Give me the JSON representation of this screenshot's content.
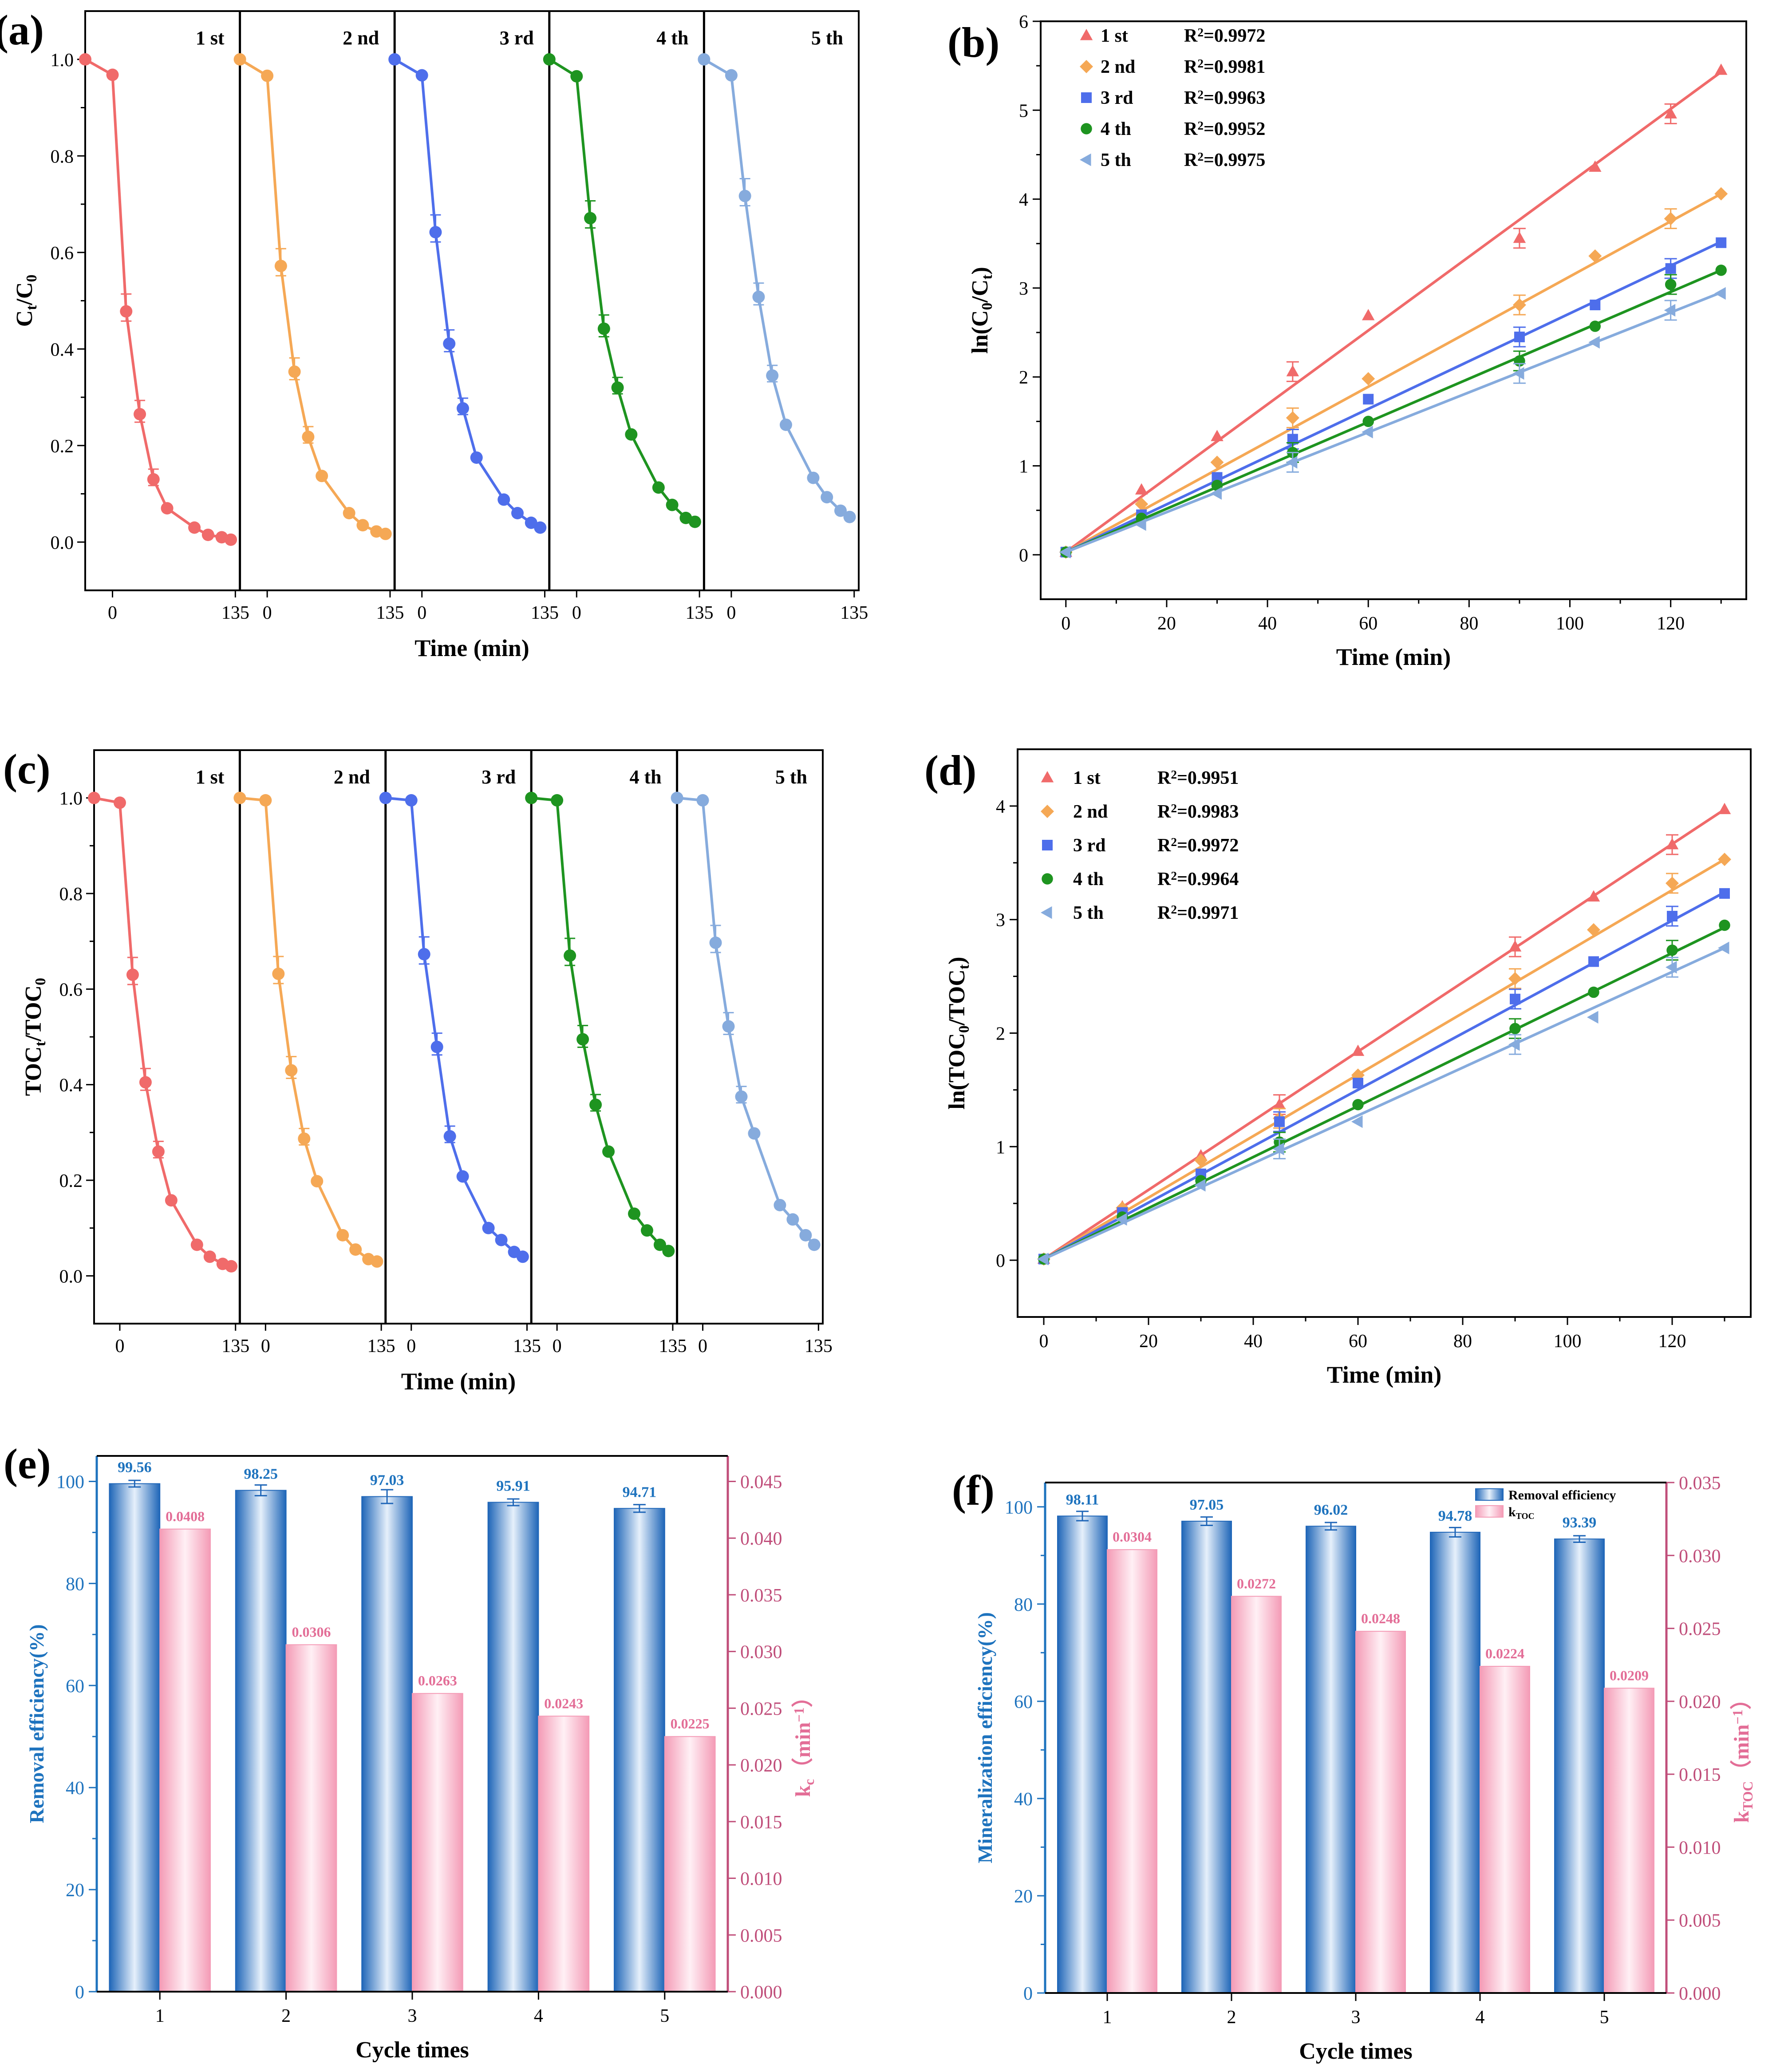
{
  "colors": {
    "cycle1": "#F06A6A",
    "cycle2": "#F5A855",
    "cycle3": "#4E6EEB",
    "cycle4": "#1E9420",
    "cycle5": "#86ABDD",
    "bar_blue": "#3C8DD9",
    "bar_pink": "#F7B8CB",
    "axis_left": "#1E73BE",
    "axis_right": "#C04E7A",
    "label_pink": "#E36E97"
  },
  "chart_data": [
    {
      "id": "a",
      "panel_label": "(a)",
      "type": "line",
      "xlabel": "Time (min)",
      "ylabel_main": "C",
      "ylabel_sub1": "t",
      "ylabel_mid": "/C",
      "ylabel_sub2": "0",
      "ylim": [
        -0.1,
        1.1
      ],
      "yticks": [
        "0.0",
        "0.2",
        "0.4",
        "0.6",
        "0.8",
        "1.0"
      ],
      "ytick_values": [
        0,
        0.2,
        0.4,
        0.6,
        0.8,
        1.0
      ],
      "sub_xlim": [
        -30,
        140
      ],
      "sub_xticks": [
        "0",
        "135"
      ],
      "sub_xtick_values": [
        0,
        135
      ],
      "x": [
        -30,
        0,
        15,
        30,
        45,
        60,
        90,
        105,
        120,
        130
      ],
      "series": [
        {
          "name": "1 st",
          "values": [
            1.0,
            0.968,
            0.478,
            0.265,
            0.13,
            0.07,
            0.03,
            0.015,
            0.01,
            0.005
          ]
        },
        {
          "name": "2 nd",
          "values": [
            1.0,
            0.966,
            0.572,
            0.353,
            0.218,
            0.137,
            0.06,
            0.035,
            0.022,
            0.017
          ]
        },
        {
          "name": "3 rd",
          "values": [
            1.0,
            0.967,
            0.642,
            0.411,
            0.277,
            0.175,
            0.088,
            0.06,
            0.04,
            0.03
          ]
        },
        {
          "name": "4 th",
          "values": [
            1.0,
            0.965,
            0.671,
            0.442,
            0.32,
            0.223,
            0.113,
            0.077,
            0.05,
            0.042
          ]
        },
        {
          "name": "5 th",
          "values": [
            1.0,
            0.967,
            0.717,
            0.508,
            0.345,
            0.243,
            0.133,
            0.093,
            0.065,
            0.052
          ]
        }
      ]
    },
    {
      "id": "b",
      "panel_label": "(b)",
      "type": "scatter",
      "xlabel": "Time (min)",
      "ylabel": "ln(C0/Ct)",
      "ylabel_parts": [
        "ln(C",
        "0",
        "/C",
        "t",
        ")"
      ],
      "xlim": [
        -5,
        135
      ],
      "ylim": [
        -0.5,
        6
      ],
      "xticks": [
        "0",
        "20",
        "40",
        "60",
        "80",
        "100",
        "120"
      ],
      "xtick_values": [
        0,
        20,
        40,
        60,
        80,
        100,
        120
      ],
      "yticks": [
        "0",
        "1",
        "2",
        "3",
        "4",
        "5",
        "6"
      ],
      "ytick_values": [
        0,
        1,
        2,
        3,
        4,
        5,
        6
      ],
      "x": [
        0,
        15,
        30,
        45,
        60,
        90,
        105,
        120,
        130
      ],
      "r2_prefix": "R",
      "r2_sup": "2",
      "series": [
        {
          "name": "1 st",
          "marker": "triangle-up",
          "r2": "=0.9972",
          "values": [
            0.03,
            0.73,
            1.33,
            2.06,
            2.69,
            3.56,
            4.36,
            4.96,
            5.45
          ],
          "fit": [
            0.03,
            5.43
          ]
        },
        {
          "name": "2 nd",
          "marker": "diamond",
          "r2": "=0.9981",
          "values": [
            0.03,
            0.57,
            1.04,
            1.54,
            1.98,
            2.81,
            3.36,
            3.78,
            4.06
          ],
          "fit": [
            0.03,
            4.06
          ]
        },
        {
          "name": "3 rd",
          "marker": "square",
          "r2": "=0.9963",
          "values": [
            0.03,
            0.45,
            0.87,
            1.3,
            1.75,
            2.45,
            2.81,
            3.22,
            3.51
          ],
          "fit": [
            0.03,
            3.52
          ]
        },
        {
          "name": "4 th",
          "marker": "circle",
          "r2": "=0.9952",
          "values": [
            0.03,
            0.41,
            0.78,
            1.15,
            1.5,
            2.18,
            2.57,
            3.04,
            3.2
          ],
          "fit": [
            0.03,
            3.2
          ]
        },
        {
          "name": "5 th",
          "marker": "triangle-left",
          "r2": "=0.9975",
          "values": [
            0.03,
            0.34,
            0.69,
            1.04,
            1.38,
            2.04,
            2.39,
            2.75,
            2.94
          ],
          "fit": [
            0.03,
            2.95
          ]
        }
      ]
    },
    {
      "id": "c",
      "panel_label": "(c)",
      "type": "line",
      "xlabel": "Time (min)",
      "ylabel_main": "TOC",
      "ylabel_sub1": "t",
      "ylabel_mid": "/TOC",
      "ylabel_sub2": "0",
      "ylim": [
        -0.1,
        1.1
      ],
      "yticks": [
        "0.0",
        "0.2",
        "0.4",
        "0.6",
        "0.8",
        "1.0"
      ],
      "ytick_values": [
        0,
        0.2,
        0.4,
        0.6,
        0.8,
        1.0
      ],
      "sub_xlim": [
        -30,
        140
      ],
      "sub_xticks": [
        "0",
        "135"
      ],
      "sub_xtick_values": [
        0,
        135
      ],
      "x": [
        -30,
        0,
        15,
        30,
        45,
        60,
        90,
        105,
        120,
        130
      ],
      "series": [
        {
          "name": "1 st",
          "values": [
            1.0,
            0.99,
            0.63,
            0.405,
            0.26,
            0.158,
            0.065,
            0.04,
            0.025,
            0.02
          ]
        },
        {
          "name": "2 nd",
          "values": [
            1.0,
            0.995,
            0.632,
            0.43,
            0.287,
            0.198,
            0.085,
            0.055,
            0.035,
            0.03
          ]
        },
        {
          "name": "3 rd",
          "values": [
            1.0,
            0.995,
            0.673,
            0.479,
            0.292,
            0.208,
            0.1,
            0.075,
            0.05,
            0.04
          ]
        },
        {
          "name": "4 th",
          "values": [
            1.0,
            0.995,
            0.67,
            0.495,
            0.358,
            0.26,
            0.13,
            0.095,
            0.065,
            0.052
          ]
        },
        {
          "name": "5 th",
          "values": [
            1.0,
            0.995,
            0.697,
            0.522,
            0.375,
            0.298,
            0.148,
            0.118,
            0.085,
            0.065
          ]
        }
      ]
    },
    {
      "id": "d",
      "panel_label": "(d)",
      "type": "scatter",
      "xlabel": "Time (min)",
      "ylabel": "ln(TOC0/TOCt)",
      "ylabel_parts": [
        "ln(TOC",
        "0",
        "/TOC",
        "t",
        ")"
      ],
      "xlim": [
        -5,
        135
      ],
      "ylim": [
        -0.5,
        4.5
      ],
      "xticks": [
        "0",
        "20",
        "40",
        "60",
        "80",
        "100",
        "120"
      ],
      "xtick_values": [
        0,
        20,
        40,
        60,
        80,
        100,
        120
      ],
      "yticks": [
        "0",
        "1",
        "2",
        "3",
        "4"
      ],
      "ytick_values": [
        0,
        1,
        2,
        3,
        4
      ],
      "x": [
        0,
        15,
        30,
        45,
        60,
        90,
        105,
        120,
        130
      ],
      "r2_prefix": "R",
      "r2_sup": "2",
      "series": [
        {
          "name": "1 st",
          "marker": "triangle-up",
          "r2": "=0.9951",
          "values": [
            0.01,
            0.47,
            0.92,
            1.37,
            1.84,
            2.76,
            3.2,
            3.66,
            3.97
          ],
          "fit": [
            0.01,
            3.97
          ]
        },
        {
          "name": "2 nd",
          "marker": "diamond",
          "r2": "=0.9983",
          "values": [
            0.01,
            0.46,
            0.88,
            1.25,
            1.63,
            2.48,
            2.91,
            3.32,
            3.53
          ],
          "fit": [
            0.01,
            3.53
          ]
        },
        {
          "name": "3 rd",
          "marker": "square",
          "r2": "=0.9972",
          "values": [
            0.01,
            0.42,
            0.76,
            1.22,
            1.56,
            2.3,
            2.63,
            3.03,
            3.23
          ],
          "fit": [
            0.01,
            3.24
          ]
        },
        {
          "name": "4 th",
          "marker": "circle",
          "r2": "=0.9964",
          "values": [
            0.01,
            0.38,
            0.7,
            1.04,
            1.37,
            2.04,
            2.36,
            2.73,
            2.95
          ],
          "fit": [
            0.01,
            2.93
          ]
        },
        {
          "name": "5 th",
          "marker": "triangle-left",
          "r2": "=0.9971",
          "values": [
            0.01,
            0.36,
            0.66,
            0.98,
            1.22,
            1.9,
            2.14,
            2.58,
            2.75
          ],
          "fit": [
            0.01,
            2.75
          ]
        }
      ]
    },
    {
      "id": "e",
      "panel_label": "(e)",
      "type": "bar",
      "xlabel": "Cycle times",
      "categories": [
        "1",
        "2",
        "3",
        "4",
        "5"
      ],
      "ylabel_left": "Removal efficiency(%)",
      "ylim_left": [
        0,
        105
      ],
      "yticks_left": [
        "0",
        "20",
        "40",
        "60",
        "80",
        "100"
      ],
      "ytick_values_left": [
        0,
        20,
        40,
        60,
        80,
        100
      ],
      "ylabel_right_main": "k",
      "ylabel_right_sub": "c",
      "ylabel_right_unit": "（min",
      "ylabel_right_sup": "−1",
      "ylabel_right_close": "）",
      "ylim_right": [
        0,
        0.04725
      ],
      "yticks_right": [
        "0.000",
        "0.005",
        "0.010",
        "0.015",
        "0.020",
        "0.025",
        "0.030",
        "0.035",
        "0.040",
        "0.045"
      ],
      "ytick_values_right": [
        0,
        0.005,
        0.01,
        0.015,
        0.02,
        0.025,
        0.03,
        0.035,
        0.04,
        0.045
      ],
      "series": [
        {
          "name": "Removal efficiency",
          "axis": "left",
          "values": [
            99.56,
            98.25,
            97.03,
            95.91,
            94.71
          ],
          "labels": [
            "99.56",
            "98.25",
            "97.03",
            "95.91",
            "94.71"
          ],
          "errors": [
            0.3,
            0.7,
            1.0,
            0.3,
            0.4
          ]
        },
        {
          "name": "kc",
          "axis": "right",
          "values": [
            0.0408,
            0.0306,
            0.0263,
            0.0243,
            0.0225
          ],
          "labels": [
            "0.0408",
            "0.0306",
            "0.0263",
            "0.0243",
            "0.0225"
          ]
        }
      ]
    },
    {
      "id": "f",
      "panel_label": "(f)",
      "type": "bar",
      "xlabel": "Cycle times",
      "categories": [
        "1",
        "2",
        "3",
        "4",
        "5"
      ],
      "ylabel_left": "Mineralization efficiency(%)",
      "ylim_left": [
        0,
        105
      ],
      "yticks_left": [
        "0",
        "20",
        "40",
        "60",
        "80",
        "100"
      ],
      "ytick_values_left": [
        0,
        20,
        40,
        60,
        80,
        100
      ],
      "ylabel_right_main": "k",
      "ylabel_right_sub": "TOC",
      "ylabel_right_unit": "（min",
      "ylabel_right_sup": "−1",
      "ylabel_right_close": "）",
      "ylim_right": [
        0,
        0.035
      ],
      "yticks_right": [
        "0.000",
        "0.005",
        "0.010",
        "0.015",
        "0.020",
        "0.025",
        "0.030",
        "0.035"
      ],
      "ytick_values_right": [
        0,
        0.005,
        0.01,
        0.015,
        0.02,
        0.025,
        0.03,
        0.035
      ],
      "legend": [
        {
          "label": "Removal efficiency",
          "swatch": "blue"
        },
        {
          "label_main": "k",
          "label_sub": "TOC",
          "swatch": "pink"
        }
      ],
      "series": [
        {
          "name": "Removal efficiency",
          "axis": "left",
          "values": [
            98.11,
            97.05,
            96.02,
            94.78,
            93.39
          ],
          "labels": [
            "98.11",
            "97.05",
            "96.02",
            "94.78",
            "93.39"
          ],
          "errors": [
            0.6,
            0.5,
            0.4,
            0.6,
            0.3
          ]
        },
        {
          "name": "kTOC",
          "axis": "right",
          "values": [
            0.0304,
            0.0272,
            0.0248,
            0.0224,
            0.0209
          ],
          "labels": [
            "0.0304",
            "0.0272",
            "0.0248",
            "0.0224",
            "0.0209"
          ]
        }
      ]
    }
  ]
}
